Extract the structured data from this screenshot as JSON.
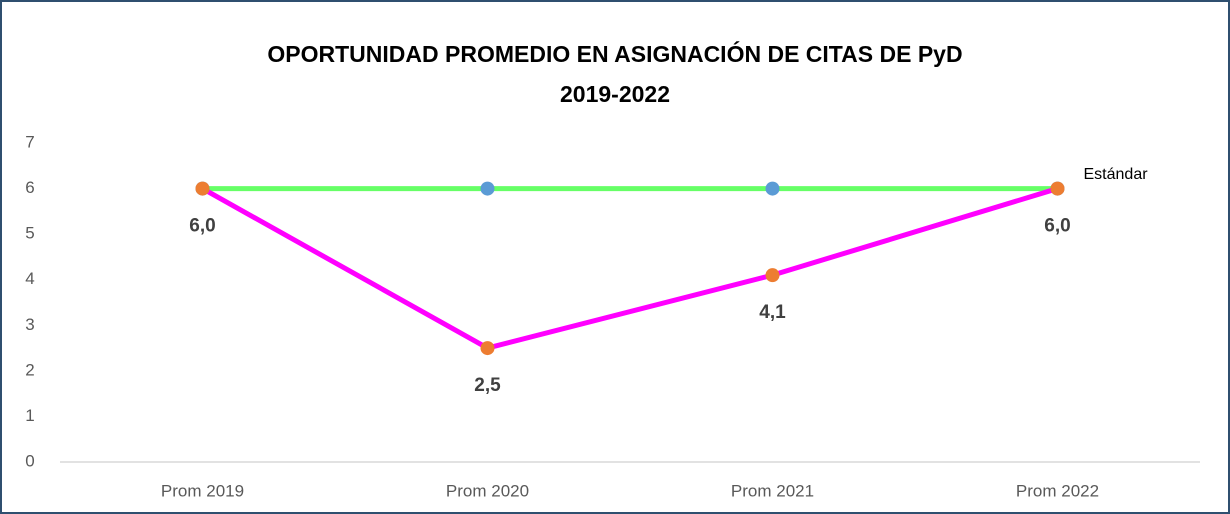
{
  "chart_data": {
    "type": "line",
    "title": [
      "OPORTUNIDAD PROMEDIO EN ASIGNACIÓN DE CITAS DE PyD",
      "2019-2022"
    ],
    "categories": [
      "Prom 2019",
      "Prom 2020",
      "Prom 2021",
      "Prom 2022"
    ],
    "series": [
      {
        "name": "Estándar",
        "color": "#66ff66",
        "marker_color": "#5b9bd5",
        "values": [
          6,
          6,
          6,
          6
        ]
      },
      {
        "color": "#ff00ff",
        "marker_color": "#ed7d31",
        "values": [
          6.0,
          2.5,
          4.1,
          6.0
        ],
        "value_labels": [
          "6,0",
          "2,5",
          "4,1",
          "6,0"
        ]
      }
    ],
    "ylim": [
      0,
      7
    ],
    "yticks": [
      0,
      1,
      2,
      3,
      4,
      5,
      6,
      7
    ],
    "grid": false
  }
}
